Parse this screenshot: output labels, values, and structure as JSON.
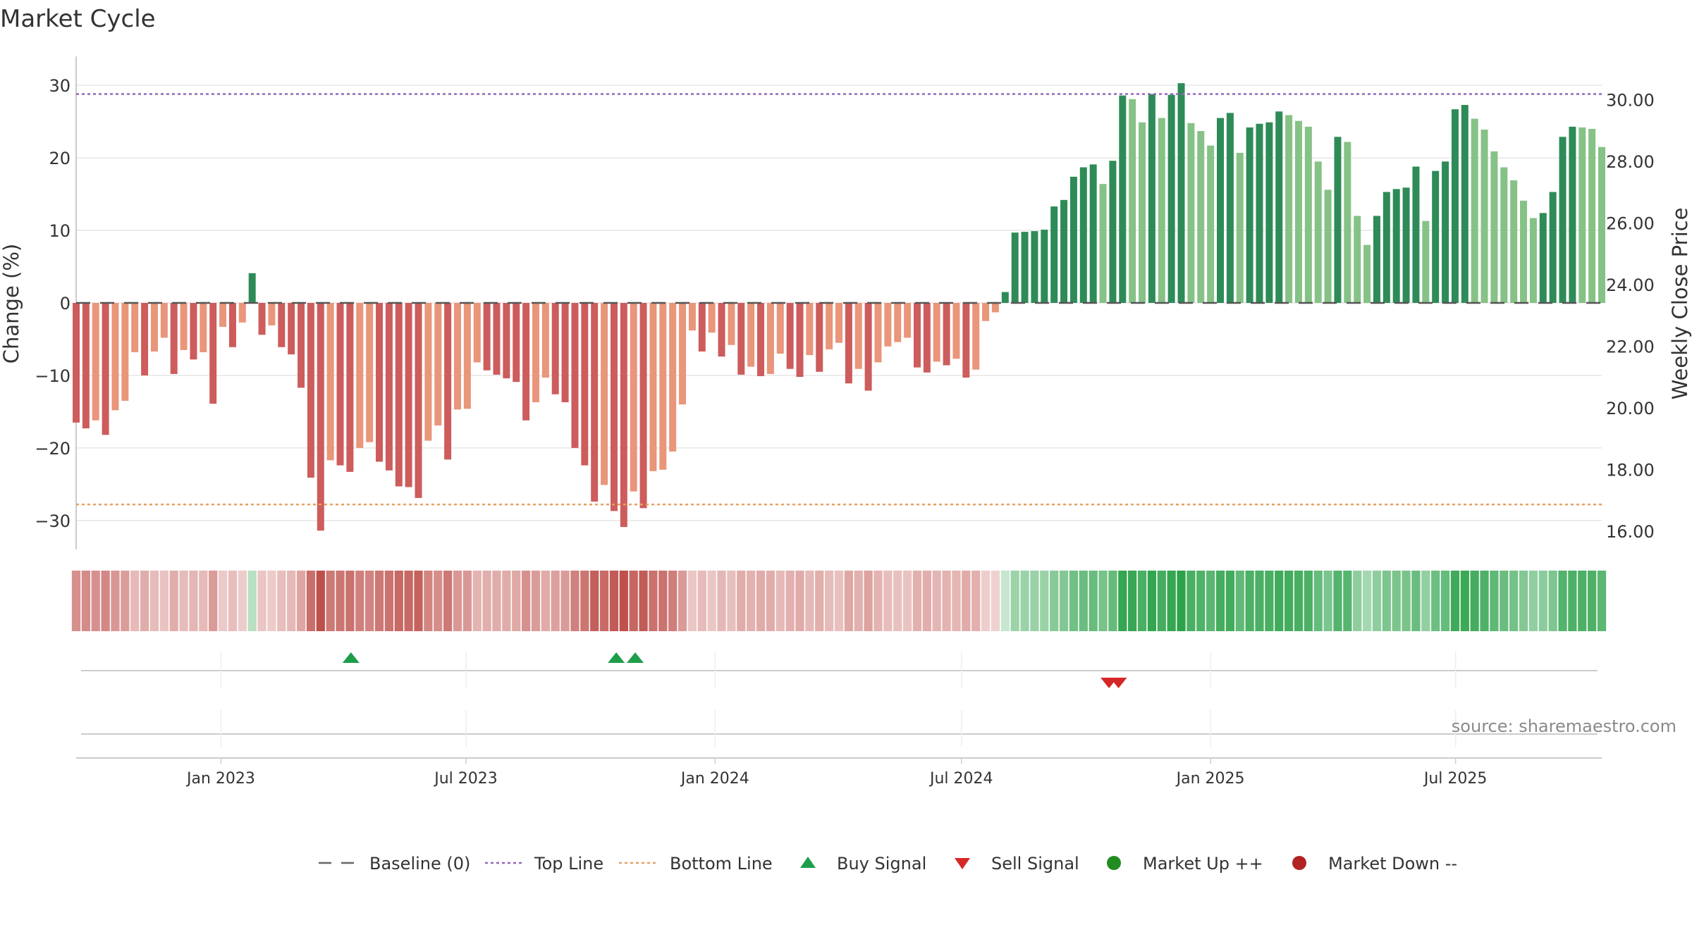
{
  "title": "Market Cycle",
  "source_text": "source: sharemaestro.com",
  "colors": {
    "neg_dark": "#cd5c5c",
    "neg_light": "#e9967a",
    "pos_dark": "#2e8b57",
    "pos_light": "#86c286",
    "top_line": "#9467bd",
    "bottom_line": "#e8a060",
    "baseline": "#555555",
    "buy": "#1e9e4a",
    "sell": "#d62728",
    "market_up": "#228b22",
    "market_down": "#b22222",
    "grid": "#e6e6e6"
  },
  "chart_data": {
    "type": "bar",
    "title": "Market Cycle",
    "ylabel": "Change (%)",
    "y2label": "Weekly Close Price",
    "ylim": [
      -34,
      34
    ],
    "y2lim": [
      15.4,
      31.4
    ],
    "yticks": [
      30,
      20,
      10,
      0,
      -10,
      -20,
      -30
    ],
    "ytick_labels": [
      "30",
      "20",
      "10",
      "0",
      "−10",
      "−20",
      "−30"
    ],
    "y2ticks": [
      30,
      28,
      26,
      24,
      22,
      20,
      18,
      16
    ],
    "y2tick_labels": [
      "30.00",
      "28.00",
      "26.00",
      "24.00",
      "22.00",
      "20.00",
      "18.00",
      "16.00"
    ],
    "x_start": "2022-09-16",
    "x_step_days": 7,
    "x_end": "2025-10-17",
    "xticks": [
      {
        "date": "2023-01-01",
        "label": "Jan 2023"
      },
      {
        "date": "2023-07-01",
        "label": "Jul 2023"
      },
      {
        "date": "2024-01-01",
        "label": "Jan 2024"
      },
      {
        "date": "2024-07-01",
        "label": "Jul 2024"
      },
      {
        "date": "2025-01-01",
        "label": "Jan 2025"
      },
      {
        "date": "2025-07-01",
        "label": "Jul 2025"
      }
    ],
    "top_line": 28.8,
    "bottom_line": -27.8,
    "baseline": 0,
    "values": [
      -16.5,
      -17.3,
      -16.2,
      -18.2,
      -14.8,
      -13.5,
      -6.8,
      -10.0,
      -6.7,
      -4.8,
      -9.8,
      -6.5,
      -7.8,
      -6.8,
      -13.9,
      -3.3,
      -6.1,
      -2.7,
      4.1,
      -4.4,
      -3.1,
      -6.1,
      -7.1,
      -11.7,
      -24.1,
      -31.4,
      -21.7,
      -22.4,
      -23.3,
      -20.0,
      -19.2,
      -21.9,
      -23.1,
      -25.3,
      -25.4,
      -26.9,
      -19.0,
      -16.9,
      -21.6,
      -14.7,
      -14.6,
      -8.2,
      -9.3,
      -9.9,
      -10.4,
      -10.9,
      -16.2,
      -13.7,
      -10.3,
      -12.6,
      -13.7,
      -20.0,
      -22.4,
      -27.4,
      -25.1,
      -28.7,
      -30.9,
      -26.0,
      -28.3,
      -23.2,
      -23.0,
      -20.5,
      -14.0,
      -3.8,
      -6.7,
      -4.1,
      -7.4,
      -5.8,
      -9.9,
      -8.8,
      -10.1,
      -9.8,
      -7.0,
      -9.1,
      -10.2,
      -7.2,
      -9.5,
      -6.4,
      -5.5,
      -11.1,
      -9.1,
      -12.1,
      -8.2,
      -6.0,
      -5.4,
      -4.8,
      -8.9,
      -9.6,
      -8.1,
      -8.6,
      -7.7,
      -10.3,
      -9.2,
      -2.5,
      -1.3,
      1.5,
      9.7,
      9.8,
      9.9,
      10.1,
      13.3,
      14.2,
      17.4,
      18.7,
      19.1,
      16.4,
      19.6,
      28.6,
      28.1,
      24.9,
      28.8,
      25.5,
      28.7,
      30.3,
      24.8,
      23.7,
      21.7,
      25.5,
      26.2,
      20.7,
      24.2,
      24.7,
      24.9,
      26.4,
      25.9,
      25.1,
      24.3,
      19.5,
      15.6,
      22.9,
      22.2,
      12.0,
      8.0,
      12.0,
      15.3,
      15.7,
      15.9,
      18.8,
      11.3,
      18.2,
      19.5,
      26.7,
      27.3,
      25.4,
      23.9,
      20.9,
      18.7,
      16.9,
      14.1,
      11.7,
      12.4,
      15.3,
      22.9,
      24.3,
      24.2,
      24.0,
      21.5
    ],
    "heat_strip": "weekly strength shading, same weeks as bars",
    "buy_signals": [
      "2023-04-07",
      "2023-10-20",
      "2023-11-03"
    ],
    "sell_signals": [
      "2024-10-18",
      "2024-10-25"
    ],
    "legend": [
      {
        "key": "baseline",
        "label": "Baseline (0)"
      },
      {
        "key": "top",
        "label": "Top Line"
      },
      {
        "key": "bottom",
        "label": "Bottom Line"
      },
      {
        "key": "buy",
        "label": "Buy Signal"
      },
      {
        "key": "sell",
        "label": "Sell Signal"
      },
      {
        "key": "up",
        "label": "Market Up ++"
      },
      {
        "key": "down",
        "label": "Market Down --"
      }
    ],
    "legend_position": "bottom-center",
    "grid": true
  }
}
